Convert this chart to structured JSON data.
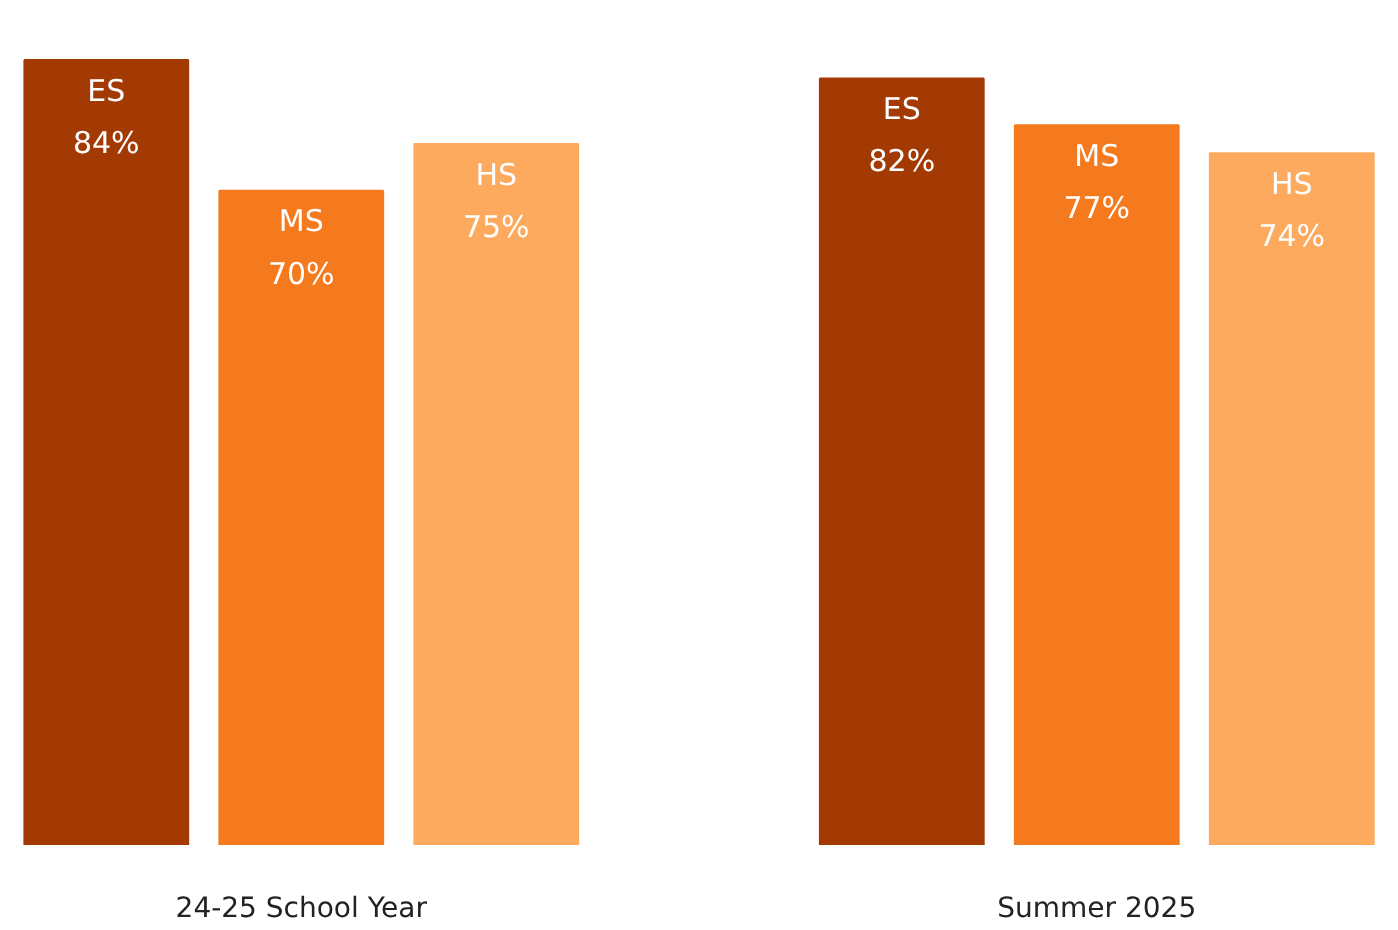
{
  "chart_data": {
    "type": "bar",
    "categories": [
      "24-25 School Year",
      "Summer 2025"
    ],
    "series": [
      {
        "name": "ES",
        "color": "#a33a04",
        "values": [
          84,
          82
        ],
        "value_labels": [
          "84%",
          "82%"
        ]
      },
      {
        "name": "MS",
        "color": "#f57a1e",
        "values": [
          70,
          77
        ],
        "value_labels": [
          "70%",
          "77%"
        ]
      },
      {
        "name": "HS",
        "color": "#fdaa5e",
        "values": [
          75,
          74
        ],
        "value_labels": [
          "75%",
          "74%"
        ]
      }
    ]
  }
}
